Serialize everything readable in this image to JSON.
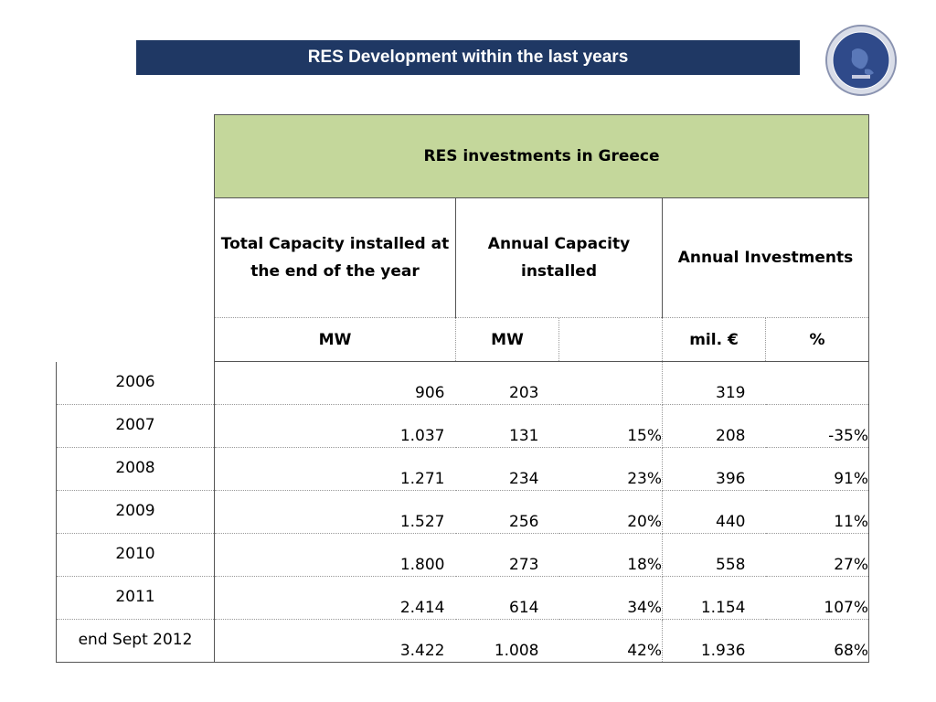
{
  "slide": {
    "title": "RES Development within the last years"
  },
  "table": {
    "caption": "RES investments in Greece",
    "headers": [
      "Total Capacity installed at the end of the year",
      "Annual Capacity installed",
      "Annual Investments"
    ],
    "units": [
      "MW",
      "MW",
      "",
      "mil. €",
      "%"
    ],
    "rows": [
      {
        "year": "2006",
        "total": "906",
        "annual": "203",
        "annual_pct": "",
        "invest": "319",
        "invest_pct": ""
      },
      {
        "year": "2007",
        "total": "1.037",
        "annual": "131",
        "annual_pct": "15%",
        "invest": "208",
        "invest_pct": "-35%"
      },
      {
        "year": "2008",
        "total": "1.271",
        "annual": "234",
        "annual_pct": "23%",
        "invest": "396",
        "invest_pct": "91%"
      },
      {
        "year": "2009",
        "total": "1.527",
        "annual": "256",
        "annual_pct": "20%",
        "invest": "440",
        "invest_pct": "11%"
      },
      {
        "year": "2010",
        "total": "1.800",
        "annual": "273",
        "annual_pct": "18%",
        "invest": "558",
        "invest_pct": "27%"
      },
      {
        "year": "2011",
        "total": "2.414",
        "annual": "614",
        "annual_pct": "34%",
        "invest": "1.154",
        "invest_pct": "107%"
      },
      {
        "year": "end Sept 2012",
        "total": "3.422",
        "annual": "1.008",
        "annual_pct": "42%",
        "invest": "1.936",
        "invest_pct": "68%"
      }
    ]
  },
  "colors": {
    "title_bar": "#1f3864",
    "caption_fill": "#c4d79b",
    "seal": "#2f4a8a"
  },
  "icons": {
    "seal": "association-seal-icon"
  }
}
